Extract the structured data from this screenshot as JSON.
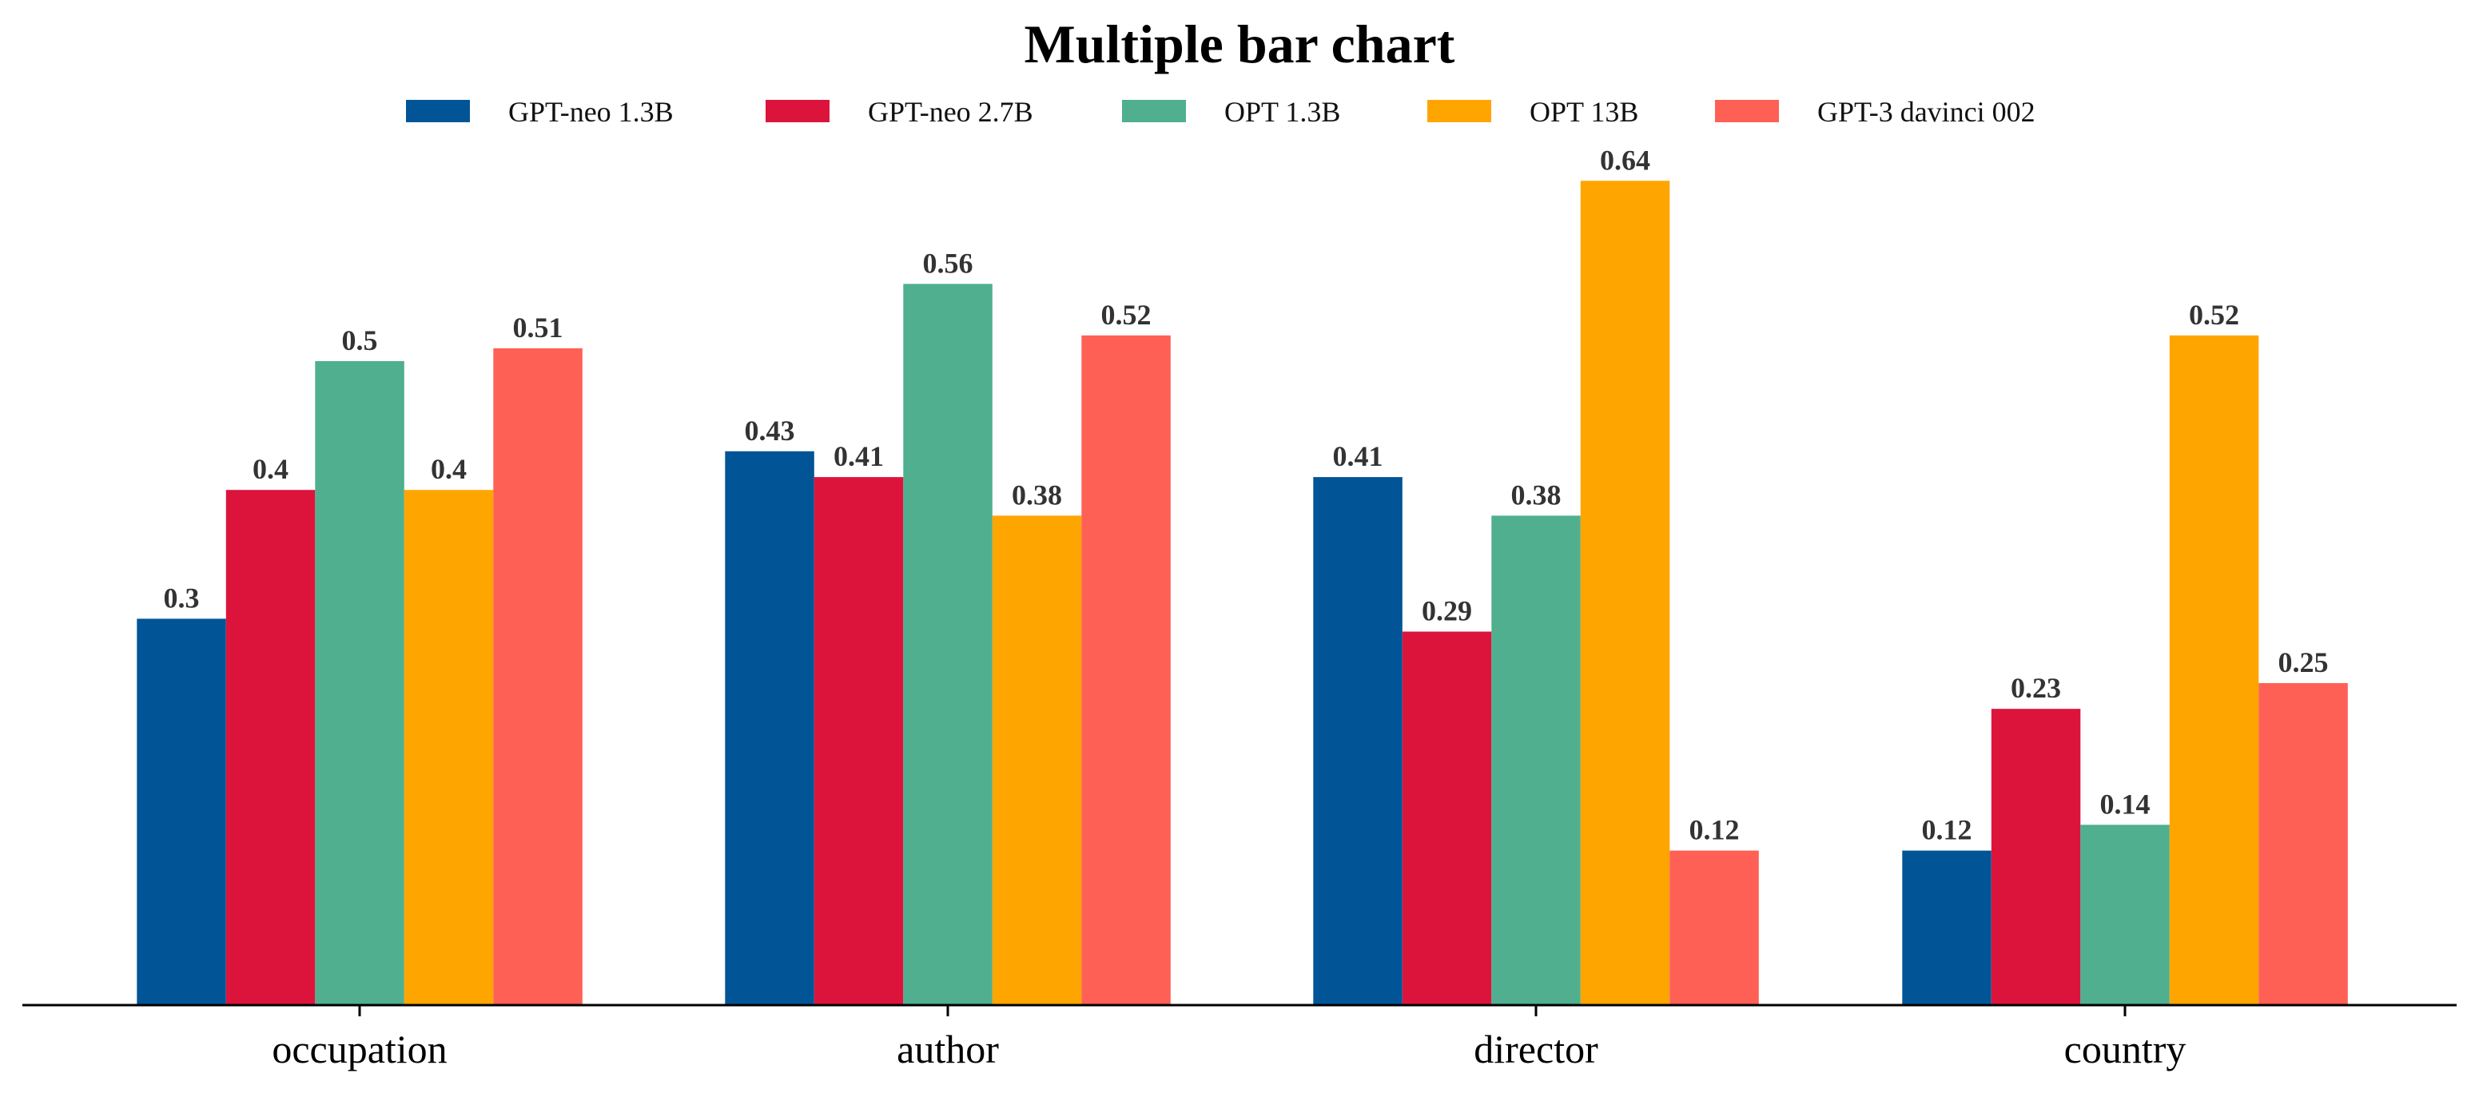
{
  "chart_data": {
    "type": "bar",
    "title": "Multiple bar chart",
    "xlabel": "",
    "ylabel": "",
    "ylim": [
      0,
      0.67
    ],
    "grid": false,
    "legend_position": "top-center",
    "categories": [
      "occupation",
      "author",
      "director",
      "country"
    ],
    "series": [
      {
        "name": "GPT-neo 1.3B",
        "color": "#015597",
        "values": [
          0.3,
          0.43,
          0.41,
          0.12
        ]
      },
      {
        "name": "GPT-neo 2.7B",
        "color": "#DC143C",
        "values": [
          0.4,
          0.41,
          0.29,
          0.23
        ]
      },
      {
        "name": "OPT 1.3B",
        "color": "#4FAF8F",
        "values": [
          0.5,
          0.56,
          0.38,
          0.14
        ]
      },
      {
        "name": "OPT 13B",
        "color": "#FFA500",
        "values": [
          0.4,
          0.38,
          0.64,
          0.52
        ]
      },
      {
        "name": "GPT-3 davinci 002",
        "color": "#FF6055",
        "values": [
          0.51,
          0.52,
          0.12,
          0.25
        ]
      }
    ]
  }
}
